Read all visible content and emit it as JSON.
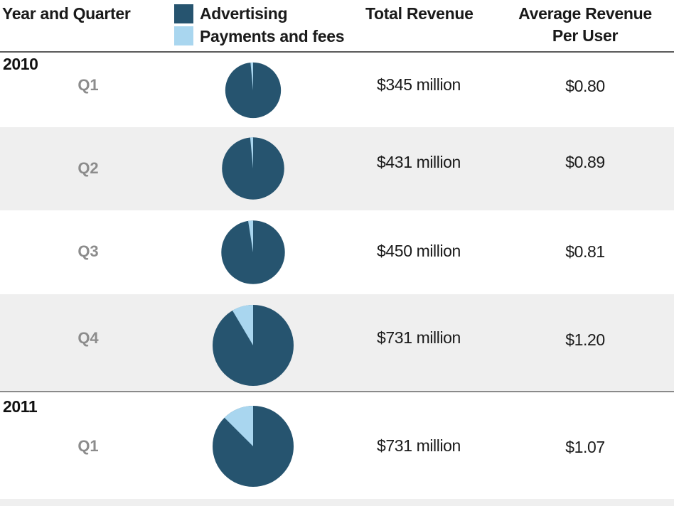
{
  "colors": {
    "advertising": "#26546f",
    "payments": "#a9d6ef",
    "quarter_text": "#8c8c8c",
    "shade": "#efefef"
  },
  "header": {
    "year_quarter": "Year and Quarter",
    "legend": [
      {
        "label": "Advertising",
        "color": "#26546f"
      },
      {
        "label": "Payments and fees",
        "color": "#a9d6ef"
      }
    ],
    "total_revenue": "Total Revenue",
    "arpu": "Average Revenue Per User"
  },
  "years": [
    "2010",
    "2011"
  ],
  "chart_data": {
    "type": "table",
    "columns": [
      "Year and Quarter",
      "Advertising / Payments and fees",
      "Total Revenue",
      "Average Revenue Per User"
    ],
    "series": [
      {
        "name": "Advertising"
      },
      {
        "name": "Payments and fees"
      }
    ],
    "rows": [
      {
        "year": "2010",
        "quarter": "Q1",
        "total_revenue": "$345 million",
        "arpu": "$0.80",
        "total_revenue_musd": 345,
        "payments_share": 0.015
      },
      {
        "year": "2010",
        "quarter": "Q2",
        "total_revenue": "$431 million",
        "arpu": "$0.89",
        "total_revenue_musd": 431,
        "payments_share": 0.015
      },
      {
        "year": "2010",
        "quarter": "Q3",
        "total_revenue": "$450 million",
        "arpu": "$0.81",
        "total_revenue_musd": 450,
        "payments_share": 0.025
      },
      {
        "year": "2010",
        "quarter": "Q4",
        "total_revenue": "$731 million",
        "arpu": "$1.20",
        "total_revenue_musd": 731,
        "payments_share": 0.085
      },
      {
        "year": "2011",
        "quarter": "Q1",
        "total_revenue": "$731 million",
        "arpu": "$1.07",
        "total_revenue_musd": 731,
        "payments_share": 0.125
      }
    ]
  }
}
